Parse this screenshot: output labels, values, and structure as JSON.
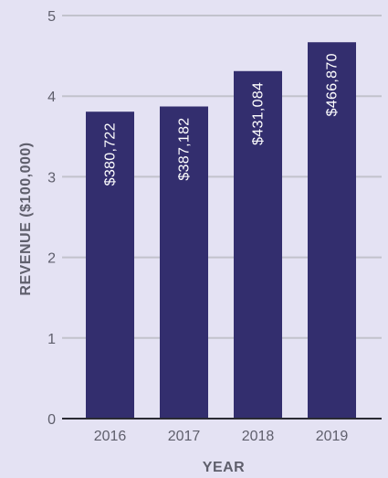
{
  "chart_data": {
    "type": "bar",
    "title": "",
    "xlabel": "YEAR",
    "ylabel": "REVENUE ($100,000)",
    "categories": [
      "2016",
      "2017",
      "2018",
      "2019"
    ],
    "values": [
      3.80722,
      3.87182,
      4.31084,
      4.6687
    ],
    "data_labels": [
      "$380,722",
      "$387,182",
      "$431,084",
      "$466,870"
    ],
    "y_ticks": [
      "0",
      "1",
      "2",
      "3",
      "4",
      "5"
    ],
    "ylim": [
      0,
      5
    ],
    "grid": true,
    "legend": "none",
    "bar_color": "#332e6e"
  }
}
